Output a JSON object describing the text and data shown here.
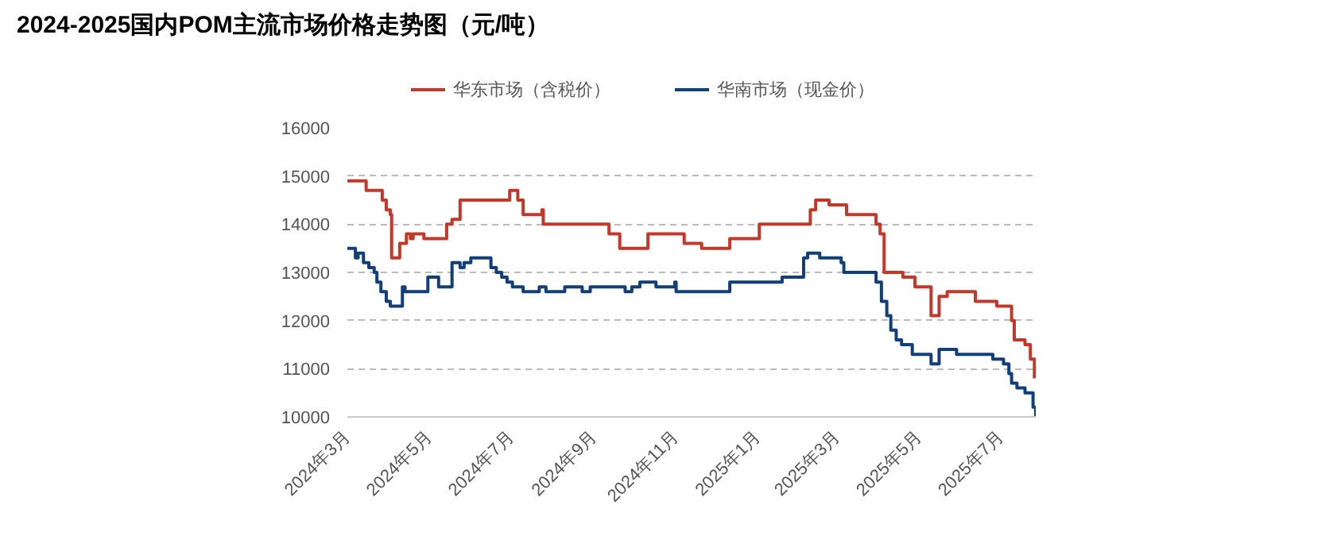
{
  "chart_data": {
    "type": "step",
    "title": "2024-2025国内POM主流市场价格走势图（元/吨）",
    "xlim": [
      "2024-03-01",
      "2025-07-27"
    ],
    "xticks": [
      {
        "value": "2024-03-01",
        "label": "2024年3月"
      },
      {
        "value": "2024-05-01",
        "label": "2024年5月"
      },
      {
        "value": "2024-07-01",
        "label": "2024年7月"
      },
      {
        "value": "2024-09-01",
        "label": "2024年9月"
      },
      {
        "value": "2024-11-01",
        "label": "2024年11月"
      },
      {
        "value": "2025-01-01",
        "label": "2025年1月"
      },
      {
        "value": "2025-03-01",
        "label": "2025年3月"
      },
      {
        "value": "2025-05-01",
        "label": "2025年5月"
      },
      {
        "value": "2025-07-01",
        "label": "2025年7月"
      }
    ],
    "ylim": [
      10000,
      16000
    ],
    "yticks": [
      10000,
      11000,
      12000,
      13000,
      14000,
      15000,
      16000
    ],
    "grid": "y",
    "legend": "top",
    "marker": "none",
    "line_style": "solid",
    "series": [
      {
        "name": "华东市场（含税价）",
        "color": "#c0392b",
        "x": [
          "2024-03-01",
          "2024-03-15",
          "2024-03-27",
          "2024-03-30",
          "2024-04-02",
          "2024-04-03",
          "2024-04-09",
          "2024-04-14",
          "2024-04-17",
          "2024-04-19",
          "2024-04-27",
          "2024-05-14",
          "2024-05-18",
          "2024-05-24",
          "2024-06-30",
          "2024-07-06",
          "2024-07-10",
          "2024-07-24",
          "2024-07-25",
          "2024-09-12",
          "2024-09-20",
          "2024-10-11",
          "2024-11-07",
          "2024-11-20",
          "2024-12-11",
          "2025-01-02",
          "2025-02-09",
          "2025-02-13",
          "2025-02-23",
          "2025-03-08",
          "2025-03-30",
          "2025-04-02",
          "2025-04-05",
          "2025-04-19",
          "2025-04-28",
          "2025-05-10",
          "2025-05-16",
          "2025-05-22",
          "2025-06-12",
          "2025-06-28",
          "2025-07-09",
          "2025-07-11",
          "2025-07-19",
          "2025-07-23",
          "2025-07-26"
        ],
        "values": [
          14900,
          14700,
          14500,
          14300,
          14200,
          13300,
          13600,
          13800,
          13700,
          13800,
          13700,
          14000,
          14100,
          14500,
          14700,
          14500,
          14200,
          14300,
          14000,
          13800,
          13500,
          13800,
          13600,
          13500,
          13700,
          14000,
          14300,
          14500,
          14400,
          14200,
          14000,
          13800,
          13000,
          12900,
          12700,
          12100,
          12500,
          12600,
          12400,
          12300,
          12000,
          11600,
          11500,
          11200,
          10800
        ]
      },
      {
        "name": "华南市场（现金价）",
        "color": "#123e7a",
        "x": [
          "2024-03-01",
          "2024-03-07",
          "2024-03-09",
          "2024-03-13",
          "2024-03-17",
          "2024-03-21",
          "2024-03-23",
          "2024-03-26",
          "2024-03-30",
          "2024-04-02",
          "2024-04-11",
          "2024-04-13",
          "2024-04-30",
          "2024-05-08",
          "2024-05-18",
          "2024-05-24",
          "2024-05-27",
          "2024-06-01",
          "2024-06-16",
          "2024-06-20",
          "2024-06-24",
          "2024-06-28",
          "2024-07-02",
          "2024-07-10",
          "2024-07-22",
          "2024-07-27",
          "2024-08-10",
          "2024-08-23",
          "2024-08-29",
          "2024-09-24",
          "2024-09-29",
          "2024-10-05",
          "2024-10-17",
          "2024-10-31",
          "2024-11-01",
          "2024-12-11",
          "2025-01-19",
          "2025-02-04",
          "2025-02-07",
          "2025-02-16",
          "2025-03-04",
          "2025-03-06",
          "2025-03-30",
          "2025-04-03",
          "2025-04-07",
          "2025-04-10",
          "2025-04-14",
          "2025-04-18",
          "2025-04-26",
          "2025-05-10",
          "2025-05-16",
          "2025-05-29",
          "2025-06-25",
          "2025-07-03",
          "2025-07-07",
          "2025-07-09",
          "2025-07-13",
          "2025-07-19",
          "2025-07-25",
          "2025-07-27"
        ],
        "values": [
          13500,
          13300,
          13400,
          13200,
          13100,
          13000,
          12800,
          12600,
          12400,
          12300,
          12700,
          12600,
          12900,
          12700,
          13200,
          13100,
          13200,
          13300,
          13100,
          13000,
          12900,
          12800,
          12700,
          12600,
          12700,
          12600,
          12700,
          12600,
          12700,
          12600,
          12700,
          12800,
          12700,
          12800,
          12600,
          12800,
          12900,
          13300,
          13400,
          13300,
          13200,
          13000,
          12800,
          12400,
          12100,
          11800,
          11600,
          11500,
          11300,
          11100,
          11400,
          11300,
          11200,
          11100,
          10900,
          10700,
          10600,
          10500,
          10200,
          10000
        ]
      }
    ]
  }
}
